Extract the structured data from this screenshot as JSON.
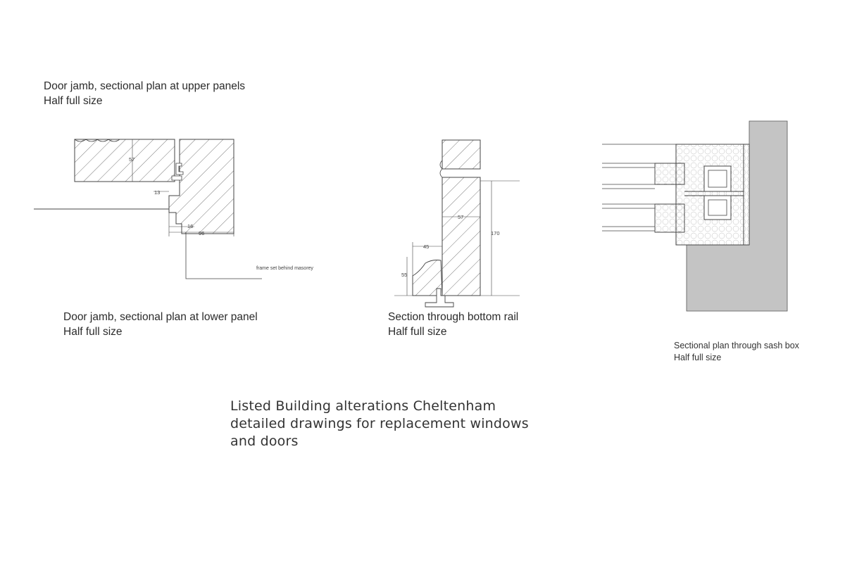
{
  "captions": {
    "upper_panels": {
      "line1": "Door jamb, sectional plan at upper panels",
      "line2": "Half full size"
    },
    "lower_panel": {
      "line1": "Door jamb, sectional plan at lower panel",
      "line2": "Half full size"
    },
    "bottom_rail": {
      "line1": "Section through bottom rail",
      "line2": "Half full size"
    },
    "sash_box": {
      "line1": "Sectional plan through sash box",
      "line2": "Half full size"
    }
  },
  "title": {
    "line1": "Listed Building alterations Cheltenham",
    "line2": "detailed drawings for replacement windows",
    "line3": "and doors"
  },
  "dimensions": {
    "jamb_depth": "57",
    "jamb_offset": "13",
    "jamb_rebate": "16",
    "jamb_width": "96",
    "rail_thickness": "57",
    "rail_height": "170",
    "moulding_width": "45",
    "moulding_height": "55"
  },
  "notes": {
    "frame_set": "frame set behind masorey"
  },
  "colors": {
    "line": "#444444",
    "hatch": "#555555",
    "masonry": "#c4c4c4"
  }
}
